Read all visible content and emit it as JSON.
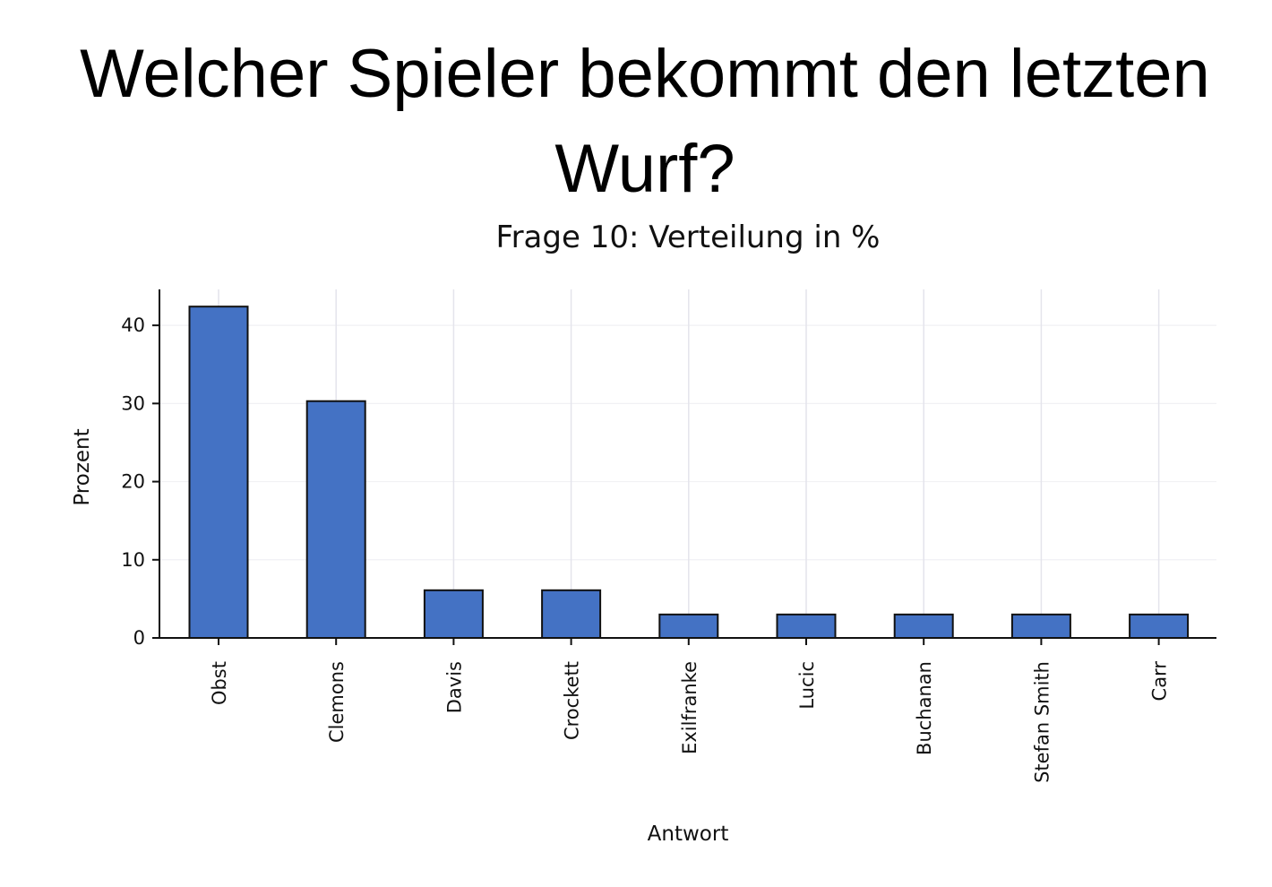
{
  "slide": {
    "title": "Welcher Spieler bekommt den letzten Wurf?"
  },
  "chart_data": {
    "type": "bar",
    "title": "Frage 10: Verteilung in %",
    "xlabel": "Antwort",
    "ylabel": "Prozent",
    "categories": [
      "Obst",
      "Clemons",
      "Davis",
      "Crockett",
      "Exilfranke",
      "Lucic",
      "Buchanan",
      "Stefan Smith",
      "Carr"
    ],
    "values": [
      42.4,
      30.3,
      6.1,
      6.1,
      3.0,
      3.0,
      3.0,
      3.0,
      3.0
    ],
    "ylim": [
      0,
      44.6
    ],
    "yticks": [
      0,
      10,
      20,
      30,
      40
    ],
    "grid": true,
    "legend": "none",
    "colors": {
      "bar_fill": "#4472C4",
      "bar_edge": "#111111",
      "grid": "#e4e4ec",
      "axis": "#111111"
    }
  }
}
